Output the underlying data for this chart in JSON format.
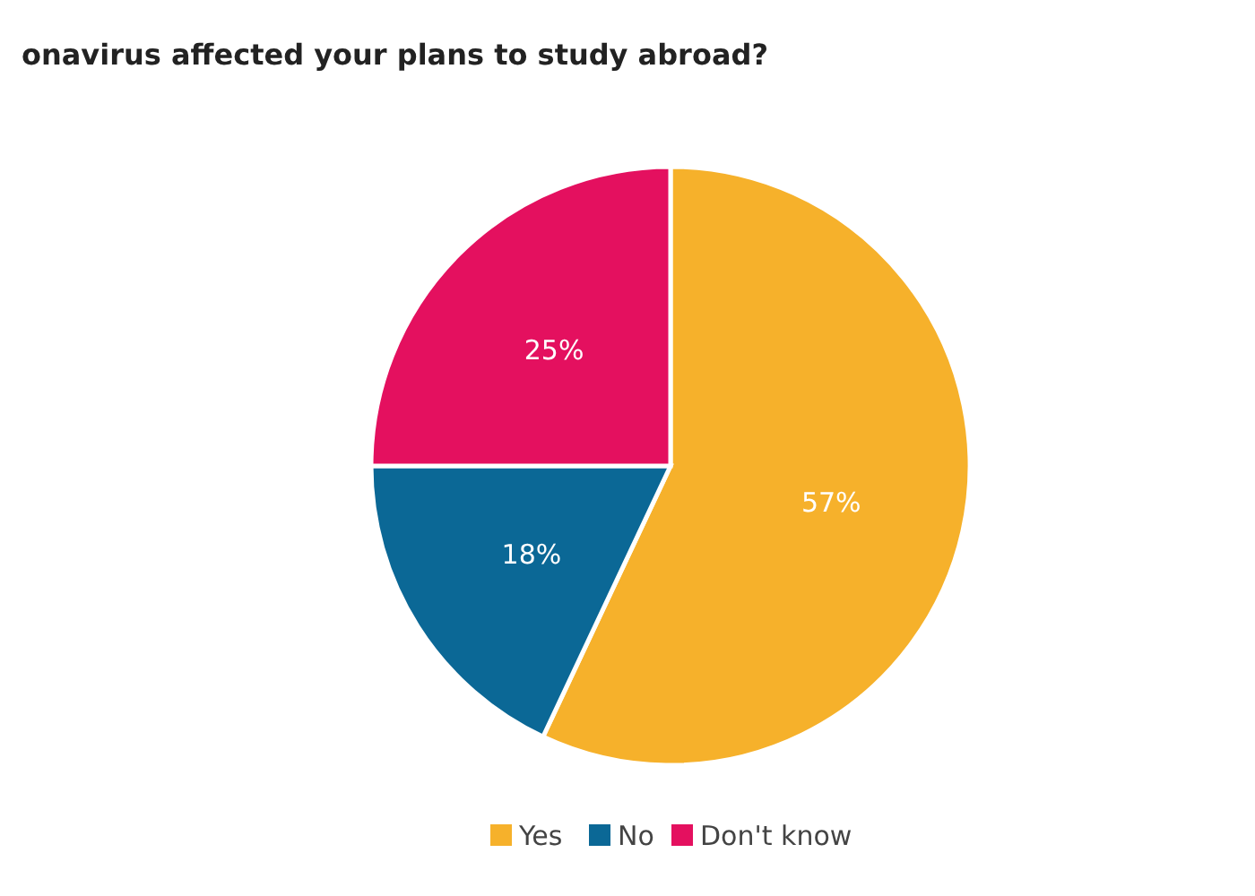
{
  "chart_data": {
    "type": "pie",
    "title": "onavirus affected your plans to study abroad?",
    "categories": [
      "Yes",
      "No",
      "Don't know"
    ],
    "values": [
      57,
      18,
      25
    ],
    "colors": [
      "#f6b12b",
      "#0b6896",
      "#e4105f"
    ],
    "value_labels": [
      "57%",
      "18%",
      "25%"
    ],
    "legend": "bottom"
  }
}
